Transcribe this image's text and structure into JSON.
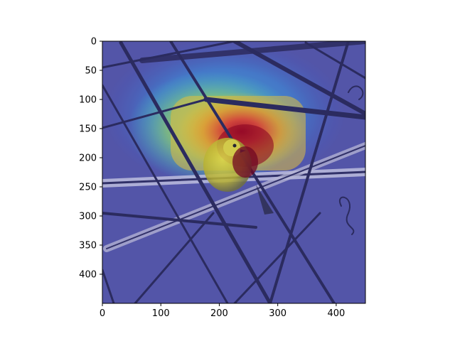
{
  "chart_data": {
    "type": "heatmap",
    "title": "",
    "xlabel": "",
    "ylabel": "",
    "xlim": [
      0,
      450
    ],
    "ylim": [
      450,
      0
    ],
    "x_ticks": [
      0,
      100,
      200,
      300,
      400
    ],
    "y_ticks": [
      0,
      50,
      100,
      150,
      200,
      250,
      300,
      350,
      400
    ],
    "colormap": "jet",
    "overlay": "saliency heatmap over photo of a yellow bird perched on bare branches",
    "hotspots": [
      {
        "x": 245,
        "y": 200,
        "value": 1.0
      },
      {
        "x": 300,
        "y": 160,
        "value": 0.8
      },
      {
        "x": 250,
        "y": 120,
        "value": 0.6
      }
    ]
  }
}
